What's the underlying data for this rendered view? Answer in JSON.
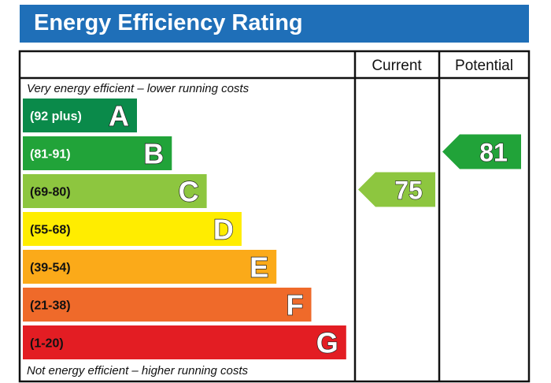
{
  "title": "Energy Efficiency Rating",
  "columns": {
    "current": "Current",
    "potential": "Potential"
  },
  "captions": {
    "top": "Very energy efficient – lower running costs",
    "bottom": "Not energy efficient – higher running costs"
  },
  "chart_data": {
    "type": "bar",
    "title": "Energy Efficiency Rating",
    "bands": [
      {
        "letter": "A",
        "range": "(92 plus)",
        "min": 92,
        "max": 100,
        "color": "#0a8a4a",
        "text_color": "#ffffff"
      },
      {
        "letter": "B",
        "range": "(81-91)",
        "min": 81,
        "max": 91,
        "color": "#21a339",
        "text_color": "#ffffff"
      },
      {
        "letter": "C",
        "range": "(69-80)",
        "min": 69,
        "max": 80,
        "color": "#8dc63f",
        "text_color": "#111111"
      },
      {
        "letter": "D",
        "range": "(55-68)",
        "min": 55,
        "max": 68,
        "color": "#ffed00",
        "text_color": "#111111"
      },
      {
        "letter": "E",
        "range": "(39-54)",
        "min": 39,
        "max": 54,
        "color": "#fbaa19",
        "text_color": "#111111"
      },
      {
        "letter": "F",
        "range": "(21-38)",
        "min": 21,
        "max": 38,
        "color": "#ef6a2a",
        "text_color": "#111111"
      },
      {
        "letter": "G",
        "range": "(1-20)",
        "min": 1,
        "max": 20,
        "color": "#e31d23",
        "text_color": "#111111"
      }
    ],
    "ratings": {
      "current": {
        "value": 75,
        "band": "C",
        "color": "#8dc63f"
      },
      "potential": {
        "value": 81,
        "band": "B",
        "color": "#21a339"
      }
    }
  }
}
